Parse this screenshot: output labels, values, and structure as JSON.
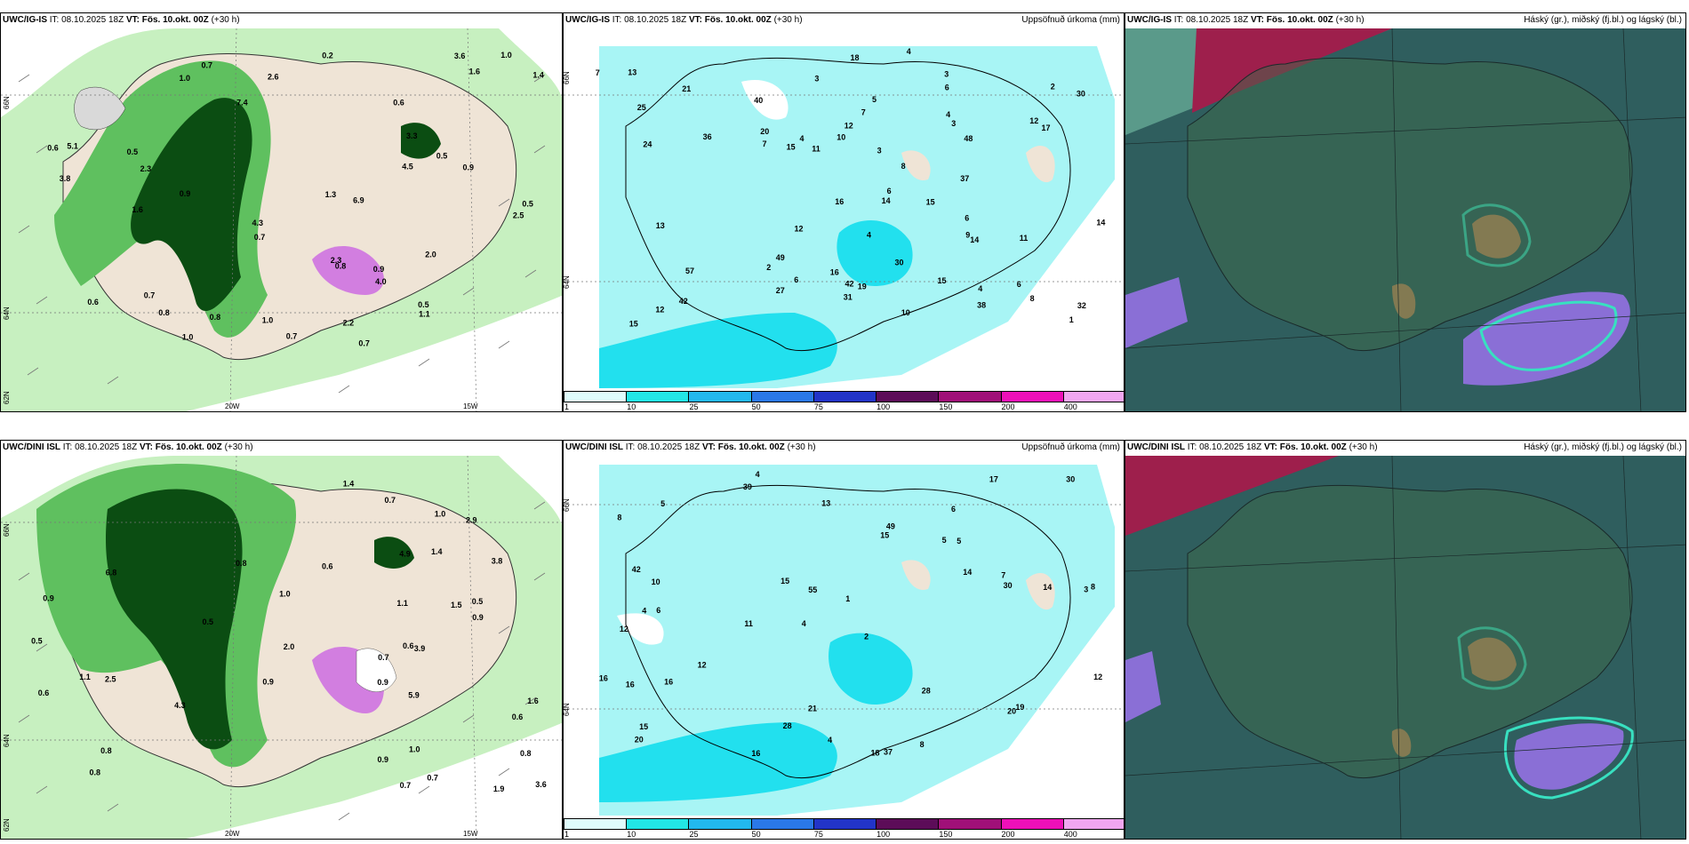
{
  "colors": {
    "land_dry": "#efe4d6",
    "precip_light": "#c7f0c0",
    "precip_mid": "#5fc05f",
    "precip_dark": "#0b4d12",
    "precip_purple": "#d27ee0",
    "accum_bg": "#a8f5f5",
    "accum_mid": "#22e0ee",
    "cloud_bg": "#2f5e5e",
    "cloud_high": "#9e1f4c",
    "cloud_purple": "#8a6fd6"
  },
  "rows": [
    {
      "model_name": "UWC/IG-IS",
      "panels": [
        {
          "model": "UWC/IG-IS",
          "it_label": "IT:",
          "it_value": "08.10.2025 18Z",
          "vt_label": "VT:",
          "vt_value": "Fös. 10.okt. 00Z",
          "lead": "(+30 h)",
          "right_title": "",
          "axis_labels": {
            "lon_a": "20W",
            "lon_b": "15W",
            "lat_a": "66N",
            "lat_b": "64N",
            "lat_c": "62N"
          },
          "values": [
            "0.7",
            "1.0",
            "0.7",
            "0.5",
            "0.5",
            "2.2",
            "2.5",
            "0.9",
            "0.7",
            "0.8",
            "0.6",
            "0.6",
            "4.3",
            "2.3",
            "4.5",
            "3.6",
            "3.8",
            "1.6",
            "2.0",
            "0.9",
            "0.5",
            "0.8",
            "1.0",
            "1.1",
            "6.9",
            "3.3",
            "1.6",
            "2.3",
            "0.7",
            "7.4",
            "4.0",
            "1.0",
            "0.6",
            "0.8",
            "0.7",
            "1.0",
            "0.2",
            "5.1",
            "0.5",
            "0.9",
            "2.6",
            "1.3",
            "1.4"
          ]
        },
        {
          "model": "UWC/IG-IS",
          "it_label": "IT:",
          "it_value": "08.10.2025 18Z",
          "vt_label": "VT:",
          "vt_value": "Fös. 10.okt. 00Z",
          "lead": "(+30 h)",
          "right_title": "Uppsöfnuð úrkoma (mm)",
          "axis_labels": {
            "lat_a": "66N",
            "lat_b": "64N"
          },
          "values": [
            "12",
            "11",
            "6",
            "4",
            "3",
            "4",
            "6",
            "3",
            "4",
            "2",
            "1",
            "7",
            "6",
            "18",
            "15",
            "20",
            "9",
            "13",
            "16",
            "30",
            "7",
            "42",
            "31",
            "15",
            "14",
            "6",
            "4",
            "7",
            "17",
            "30",
            "8",
            "12",
            "5",
            "15",
            "14",
            "10",
            "42",
            "48",
            "24",
            "16",
            "36",
            "49",
            "40",
            "27",
            "37",
            "15",
            "12",
            "19",
            "14",
            "32",
            "25",
            "10",
            "13",
            "38",
            "57",
            "21",
            "12",
            "11",
            "8",
            "6",
            "3",
            "4",
            "3",
            "2"
          ]
        },
        {
          "model": "UWC/IG-IS",
          "it_label": "IT:",
          "it_value": "08.10.2025 18Z",
          "vt_label": "VT:",
          "vt_value": "Fös. 10.okt. 00Z",
          "lead": "(+30 h)",
          "right_title": "Háský (gr.), miðský (fj.bl.) og lágský (bl.)",
          "axis_labels": {},
          "values": []
        }
      ]
    },
    {
      "model_name": "UWC/DINI ISL",
      "panels": [
        {
          "model": "UWC/DINI ISL",
          "it_label": "IT:",
          "it_value": "08.10.2025 18Z",
          "vt_label": "VT:",
          "vt_value": "Fös. 10.okt. 00Z",
          "lead": "(+30 h)",
          "right_title": "",
          "axis_labels": {
            "lon_a": "20W",
            "lon_b": "15W",
            "lat_a": "66N",
            "lat_b": "64N",
            "lat_c": "62N"
          },
          "values": [
            "0.9",
            "1.6",
            "1.5",
            "0.6",
            "0.9",
            "1.4",
            "0.5",
            "1.0",
            "0.8",
            "0.7",
            "0.6",
            "0.7",
            "0.6",
            "5.9",
            "4.3",
            "1.9",
            "2.9",
            "1.1",
            "1.0",
            "0.8",
            "0.9",
            "0.5",
            "1.1",
            "0.7",
            "0.9",
            "0.8",
            "6.8",
            "4.9",
            "3.6",
            "2.5",
            "3.8",
            "1.4",
            "0.9",
            "1.0",
            "0.5",
            "0.8",
            "0.6",
            "2.0",
            "3.9",
            "0.7"
          ]
        },
        {
          "model": "UWC/DINI ISL",
          "it_label": "IT:",
          "it_value": "08.10.2025 18Z",
          "vt_label": "VT:",
          "vt_value": "Fös. 10.okt. 00Z",
          "lead": "(+30 h)",
          "right_title": "Uppsöfnuð úrkoma (mm)",
          "axis_labels": {
            "lat_a": "66N",
            "lat_b": "64N"
          },
          "values": [
            "4",
            "6",
            "3",
            "4",
            "2",
            "6",
            "8",
            "5",
            "12",
            "15",
            "1",
            "20",
            "39",
            "11",
            "18",
            "37",
            "21",
            "17",
            "14",
            "12",
            "10",
            "4",
            "8",
            "14",
            "16",
            "42",
            "55",
            "30",
            "19",
            "16",
            "20",
            "49",
            "16",
            "15",
            "28",
            "12",
            "7",
            "28",
            "30",
            "13",
            "15",
            "16",
            "8",
            "5",
            "4",
            "5"
          ]
        },
        {
          "model": "UWC/DINI ISL",
          "it_label": "IT:",
          "it_value": "08.10.2025 18Z",
          "vt_label": "VT:",
          "vt_value": "Fös. 10.okt. 00Z",
          "lead": "(+30 h)",
          "right_title": "Háský (gr.), miðský (fj.bl.) og lágský (bl.)",
          "axis_labels": {},
          "values": []
        }
      ]
    }
  ],
  "colorbar": {
    "ticks": [
      "1",
      "10",
      "25",
      "50",
      "75",
      "100",
      "150",
      "200",
      "400"
    ],
    "colors": [
      "#dffcfc",
      "#22e6e6",
      "#22b8ee",
      "#2a78e8",
      "#2234c8",
      "#5c0c58",
      "#a01078",
      "#ee10b8",
      "#f0a6f0"
    ]
  }
}
